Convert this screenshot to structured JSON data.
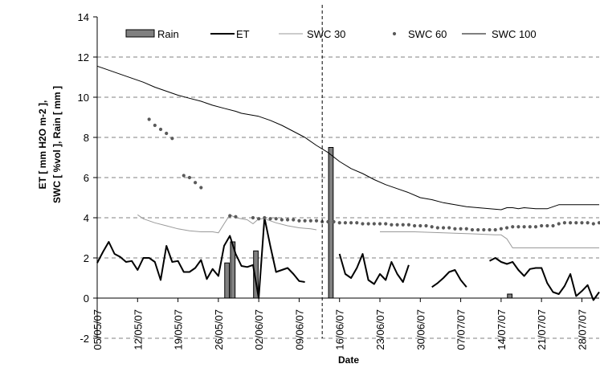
{
  "chart_data": {
    "type": "bar+line+scatter",
    "xlabel": "Date",
    "ylabel_line1": "ET [ mm H2O m-2 ],",
    "ylabel_line2": "SWC [ %vol ],  Rain [ mm ]",
    "ylim": [
      -2,
      14
    ],
    "yticks": [
      -2,
      0,
      2,
      4,
      6,
      8,
      10,
      12,
      14
    ],
    "x_range_day": [
      0,
      87
    ],
    "xticks": [
      {
        "day": 0,
        "label": "05/05/07"
      },
      {
        "day": 7,
        "label": "12/05/07"
      },
      {
        "day": 14,
        "label": "19/05/07"
      },
      {
        "day": 21,
        "label": "26/05/07"
      },
      {
        "day": 28,
        "label": "02/06/07"
      },
      {
        "day": 35,
        "label": "09/06/07"
      },
      {
        "day": 42,
        "label": "16/06/07"
      },
      {
        "day": 49,
        "label": "23/06/07"
      },
      {
        "day": 56,
        "label": "30/06/07"
      },
      {
        "day": 63,
        "label": "07/07/07"
      },
      {
        "day": 70,
        "label": "14/07/07"
      },
      {
        "day": 77,
        "label": "21/07/07"
      },
      {
        "day": 84,
        "label": "28/07/07"
      }
    ],
    "grid_y": true,
    "vertical_marker_day": 39,
    "legend_position": "top",
    "series": [
      {
        "name": "Rain",
        "kind": "bar",
        "color": "#808080",
        "points": [
          [
            22.5,
            1.75
          ],
          [
            23.5,
            2.8
          ],
          [
            27.5,
            2.35
          ],
          [
            40.5,
            7.5
          ],
          [
            71.5,
            0.2
          ]
        ]
      },
      {
        "name": "ET",
        "kind": "line",
        "color": "#000000",
        "segments": [
          [
            [
              0,
              1.75
            ],
            [
              1,
              2.3
            ],
            [
              2,
              2.8
            ],
            [
              3,
              2.2
            ],
            [
              4,
              2.05
            ],
            [
              5,
              1.8
            ],
            [
              6,
              1.85
            ],
            [
              7,
              1.4
            ],
            [
              8,
              2.0
            ],
            [
              9,
              2.0
            ],
            [
              10,
              1.8
            ],
            [
              11,
              0.9
            ],
            [
              12,
              2.6
            ],
            [
              13,
              1.8
            ],
            [
              14,
              1.85
            ],
            [
              15,
              1.3
            ],
            [
              16,
              1.3
            ],
            [
              17,
              1.5
            ],
            [
              18,
              1.9
            ],
            [
              19,
              0.95
            ],
            [
              20,
              1.45
            ],
            [
              21,
              1.1
            ],
            [
              22,
              2.6
            ],
            [
              23,
              3.1
            ],
            [
              24,
              2.2
            ],
            [
              25,
              1.6
            ],
            [
              26,
              1.55
            ],
            [
              27,
              1.65
            ],
            [
              28,
              0.0
            ],
            [
              29,
              4.0
            ],
            [
              30,
              2.6
            ],
            [
              31,
              1.3
            ],
            [
              32,
              1.4
            ],
            [
              33,
              1.5
            ],
            [
              34,
              1.2
            ],
            [
              35,
              0.85
            ],
            [
              36,
              0.8
            ]
          ],
          [
            [
              42,
              2.2
            ],
            [
              43,
              1.2
            ],
            [
              44,
              1.0
            ],
            [
              45,
              1.5
            ],
            [
              46,
              2.2
            ],
            [
              47,
              0.9
            ],
            [
              48,
              0.7
            ],
            [
              49,
              1.2
            ],
            [
              50,
              0.9
            ],
            [
              51,
              1.8
            ],
            [
              52,
              1.2
            ],
            [
              53,
              0.8
            ],
            [
              54,
              1.65
            ]
          ],
          [
            [
              58,
              0.55
            ],
            [
              59,
              0.75
            ],
            [
              60,
              1.0
            ],
            [
              61,
              1.3
            ],
            [
              62,
              1.4
            ],
            [
              63,
              0.9
            ],
            [
              64,
              0.55
            ]
          ],
          [
            [
              68,
              1.85
            ],
            [
              69,
              2.0
            ],
            [
              70,
              1.8
            ],
            [
              71,
              1.7
            ],
            [
              72,
              1.8
            ],
            [
              73,
              1.4
            ],
            [
              74,
              1.1
            ],
            [
              75,
              1.45
            ],
            [
              76,
              1.5
            ],
            [
              77,
              1.5
            ],
            [
              78,
              0.75
            ],
            [
              79,
              0.3
            ],
            [
              80,
              0.2
            ],
            [
              81,
              0.6
            ],
            [
              82,
              1.2
            ],
            [
              83,
              0.1
            ],
            [
              84,
              0.35
            ],
            [
              85,
              0.65
            ],
            [
              86,
              -0.1
            ],
            [
              87,
              0.3
            ]
          ]
        ]
      },
      {
        "name": "SWC 30",
        "kind": "line",
        "color": "#9a9a9a",
        "segments": [
          [
            [
              7,
              4.15
            ],
            [
              8,
              3.95
            ],
            [
              10,
              3.75
            ],
            [
              12,
              3.6
            ],
            [
              14,
              3.45
            ],
            [
              16,
              3.35
            ],
            [
              18,
              3.3
            ],
            [
              20,
              3.3
            ],
            [
              21,
              3.25
            ],
            [
              22,
              3.7
            ],
            [
              23,
              4.15
            ],
            [
              24,
              4.0
            ],
            [
              26,
              3.9
            ],
            [
              27,
              3.7
            ],
            [
              28,
              3.95
            ],
            [
              29,
              3.95
            ],
            [
              31,
              3.75
            ],
            [
              33,
              3.6
            ],
            [
              35,
              3.5
            ],
            [
              37,
              3.45
            ],
            [
              38,
              3.4
            ]
          ],
          [
            [
              49,
              3.3
            ],
            [
              55,
              3.3
            ],
            [
              60,
              3.25
            ],
            [
              65,
              3.2
            ],
            [
              69,
              3.15
            ],
            [
              70,
              3.15
            ],
            [
              71,
              2.95
            ],
            [
              72,
              2.5
            ],
            [
              87,
              2.5
            ]
          ]
        ]
      },
      {
        "name": "SWC 60",
        "kind": "scatter",
        "color": "#5a5a5a",
        "points": [
          [
            9,
            8.9
          ],
          [
            10,
            8.6
          ],
          [
            11,
            8.4
          ],
          [
            12,
            8.2
          ],
          [
            13,
            7.95
          ],
          [
            15,
            6.1
          ],
          [
            16,
            6.0
          ],
          [
            17,
            5.75
          ],
          [
            18,
            5.5
          ],
          [
            23,
            4.1
          ],
          [
            24,
            4.05
          ],
          [
            27,
            4.0
          ],
          [
            28,
            3.95
          ],
          [
            29,
            4.0
          ],
          [
            30,
            3.95
          ],
          [
            31,
            3.95
          ],
          [
            32,
            3.9
          ],
          [
            33,
            3.9
          ],
          [
            34,
            3.9
          ],
          [
            35,
            3.85
          ],
          [
            36,
            3.85
          ],
          [
            37,
            3.85
          ],
          [
            38,
            3.85
          ],
          [
            39,
            3.8
          ],
          [
            40,
            3.8
          ],
          [
            41,
            3.8
          ],
          [
            42,
            3.75
          ],
          [
            43,
            3.75
          ],
          [
            44,
            3.75
          ],
          [
            45,
            3.75
          ],
          [
            46,
            3.7
          ],
          [
            47,
            3.7
          ],
          [
            48,
            3.7
          ],
          [
            49,
            3.7
          ],
          [
            50,
            3.7
          ],
          [
            51,
            3.65
          ],
          [
            52,
            3.65
          ],
          [
            53,
            3.65
          ],
          [
            54,
            3.65
          ],
          [
            55,
            3.6
          ],
          [
            56,
            3.6
          ],
          [
            57,
            3.6
          ],
          [
            58,
            3.55
          ],
          [
            59,
            3.5
          ],
          [
            60,
            3.5
          ],
          [
            61,
            3.5
          ],
          [
            62,
            3.45
          ],
          [
            63,
            3.45
          ],
          [
            64,
            3.45
          ],
          [
            65,
            3.4
          ],
          [
            66,
            3.4
          ],
          [
            67,
            3.4
          ],
          [
            68,
            3.4
          ],
          [
            69,
            3.4
          ],
          [
            70,
            3.45
          ],
          [
            71,
            3.5
          ],
          [
            72,
            3.55
          ],
          [
            73,
            3.55
          ],
          [
            74,
            3.55
          ],
          [
            75,
            3.55
          ],
          [
            76,
            3.55
          ],
          [
            77,
            3.6
          ],
          [
            78,
            3.6
          ],
          [
            79,
            3.6
          ],
          [
            80,
            3.7
          ],
          [
            81,
            3.75
          ],
          [
            82,
            3.75
          ],
          [
            83,
            3.75
          ],
          [
            84,
            3.75
          ],
          [
            85,
            3.75
          ],
          [
            86,
            3.7
          ],
          [
            87,
            3.75
          ]
        ]
      },
      {
        "name": "SWC 100",
        "kind": "line",
        "color": "#000000",
        "segments": [
          [
            [
              0,
              11.55
            ],
            [
              2,
              11.35
            ],
            [
              4,
              11.15
            ],
            [
              6,
              10.95
            ],
            [
              8,
              10.75
            ],
            [
              10,
              10.5
            ],
            [
              12,
              10.3
            ],
            [
              14,
              10.1
            ],
            [
              16,
              9.95
            ],
            [
              18,
              9.8
            ],
            [
              20,
              9.6
            ],
            [
              22,
              9.45
            ],
            [
              24,
              9.3
            ],
            [
              25,
              9.2
            ],
            [
              26,
              9.15
            ],
            [
              28,
              9.05
            ],
            [
              30,
              8.85
            ],
            [
              32,
              8.6
            ],
            [
              34,
              8.3
            ],
            [
              36,
              8.0
            ],
            [
              38,
              7.6
            ],
            [
              40,
              7.25
            ],
            [
              42,
              6.8
            ],
            [
              44,
              6.45
            ],
            [
              46,
              6.2
            ],
            [
              48,
              5.9
            ],
            [
              50,
              5.65
            ],
            [
              52,
              5.45
            ],
            [
              54,
              5.25
            ],
            [
              56,
              5.0
            ],
            [
              58,
              4.9
            ],
            [
              60,
              4.75
            ],
            [
              62,
              4.65
            ],
            [
              64,
              4.55
            ],
            [
              66,
              4.5
            ],
            [
              68,
              4.45
            ],
            [
              70,
              4.4
            ],
            [
              71,
              4.5
            ],
            [
              72,
              4.5
            ],
            [
              73,
              4.45
            ],
            [
              74,
              4.5
            ],
            [
              76,
              4.45
            ],
            [
              78,
              4.45
            ],
            [
              79,
              4.55
            ],
            [
              80,
              4.65
            ],
            [
              84,
              4.65
            ],
            [
              87,
              4.65
            ]
          ]
        ]
      }
    ]
  }
}
